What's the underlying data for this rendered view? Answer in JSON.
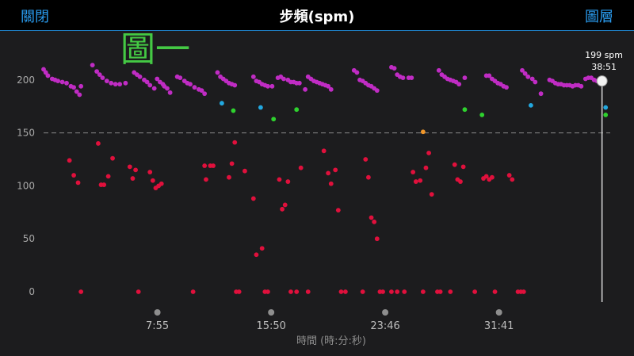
{
  "header": {
    "close_label": "關閉",
    "title": "步頻(spm)",
    "layers_label": "圖層"
  },
  "annotation": "圖一",
  "chart_data": {
    "type": "scatter",
    "title": "步頻(spm)",
    "xlabel": "時間 (時:分:秒)",
    "ylabel": "",
    "ylim": [
      0,
      210
    ],
    "yticks": [
      0,
      50,
      100,
      150,
      200
    ],
    "xtick_labels": [
      "7:55",
      "15:50",
      "23:46",
      "31:41"
    ],
    "xtick_values": [
      7.917,
      15.833,
      23.767,
      31.683
    ],
    "xlim": [
      0,
      39.2
    ],
    "reference_line": 150,
    "cursor": {
      "x": 38.85,
      "value_label": "199 spm",
      "time_label": "38:51",
      "y": 199
    },
    "colors": {
      "purple": "#c02cc4",
      "blue": "#22a8e0",
      "green": "#2ed12e",
      "orange": "#f0962a",
      "red": "#e0103c"
    },
    "series": [
      {
        "color": "purple",
        "points": [
          [
            0,
            210
          ],
          [
            0.15,
            207
          ],
          [
            0.3,
            204
          ],
          [
            0.6,
            201
          ],
          [
            0.8,
            200
          ],
          [
            1.0,
            199
          ],
          [
            1.3,
            198
          ],
          [
            1.6,
            197
          ],
          [
            1.9,
            194
          ],
          [
            2.1,
            193
          ],
          [
            2.3,
            189
          ],
          [
            2.5,
            186
          ],
          [
            2.6,
            194
          ],
          [
            3.4,
            214
          ],
          [
            3.7,
            208
          ],
          [
            3.9,
            205
          ],
          [
            4.1,
            202
          ],
          [
            4.4,
            199
          ],
          [
            4.7,
            197
          ],
          [
            5.0,
            196
          ],
          [
            5.3,
            196
          ],
          [
            5.7,
            197
          ],
          [
            6.3,
            207
          ],
          [
            6.5,
            205
          ],
          [
            6.7,
            203
          ],
          [
            7.0,
            200
          ],
          [
            7.2,
            198
          ],
          [
            7.4,
            195
          ],
          [
            7.7,
            192
          ],
          [
            7.9,
            201
          ],
          [
            8.1,
            198
          ],
          [
            8.3,
            196
          ],
          [
            8.4,
            194
          ],
          [
            8.6,
            192
          ],
          [
            8.8,
            188
          ],
          [
            9.3,
            203
          ],
          [
            9.5,
            202
          ],
          [
            9.8,
            199
          ],
          [
            10.0,
            197
          ],
          [
            10.2,
            196
          ],
          [
            10.5,
            193
          ],
          [
            10.8,
            191
          ],
          [
            11.0,
            190
          ],
          [
            11.2,
            187
          ],
          [
            12.1,
            207
          ],
          [
            12.3,
            203
          ],
          [
            12.5,
            201
          ],
          [
            12.7,
            199
          ],
          [
            12.9,
            197
          ],
          [
            13.1,
            196
          ],
          [
            13.3,
            195
          ],
          [
            14.6,
            203
          ],
          [
            14.8,
            199
          ],
          [
            15.0,
            198
          ],
          [
            15.2,
            196
          ],
          [
            15.4,
            195
          ],
          [
            15.6,
            194
          ],
          [
            15.9,
            194
          ],
          [
            16.3,
            202
          ],
          [
            16.5,
            203
          ],
          [
            16.7,
            201
          ],
          [
            17.0,
            200
          ],
          [
            17.2,
            198
          ],
          [
            17.4,
            198
          ],
          [
            17.6,
            197
          ],
          [
            17.8,
            197
          ],
          [
            18.2,
            191
          ],
          [
            18.4,
            203
          ],
          [
            18.6,
            201
          ],
          [
            18.8,
            199
          ],
          [
            19.0,
            198
          ],
          [
            19.2,
            197
          ],
          [
            19.4,
            196
          ],
          [
            19.6,
            195
          ],
          [
            19.8,
            194
          ],
          [
            20.0,
            191
          ],
          [
            21.6,
            209
          ],
          [
            21.8,
            207
          ],
          [
            22.0,
            200
          ],
          [
            22.2,
            199
          ],
          [
            22.4,
            197
          ],
          [
            22.6,
            195
          ],
          [
            22.8,
            194
          ],
          [
            23.0,
            192
          ],
          [
            23.2,
            190
          ],
          [
            24.2,
            212
          ],
          [
            24.4,
            211
          ],
          [
            24.6,
            205
          ],
          [
            24.8,
            203
          ],
          [
            25.0,
            202
          ],
          [
            25.4,
            202
          ],
          [
            25.6,
            202
          ],
          [
            27.5,
            209
          ],
          [
            27.7,
            205
          ],
          [
            27.9,
            203
          ],
          [
            28.1,
            201
          ],
          [
            28.3,
            200
          ],
          [
            28.5,
            199
          ],
          [
            28.7,
            198
          ],
          [
            28.9,
            196
          ],
          [
            29.3,
            202
          ],
          [
            30.8,
            204
          ],
          [
            31.0,
            204
          ],
          [
            31.2,
            201
          ],
          [
            31.4,
            199
          ],
          [
            31.6,
            197
          ],
          [
            31.8,
            196
          ],
          [
            32.0,
            194
          ],
          [
            32.2,
            193
          ],
          [
            33.3,
            209
          ],
          [
            33.5,
            206
          ],
          [
            33.7,
            203
          ],
          [
            34.0,
            201
          ],
          [
            34.2,
            198
          ],
          [
            34.6,
            187
          ],
          [
            35.2,
            200
          ],
          [
            35.4,
            199
          ],
          [
            35.6,
            197
          ],
          [
            35.8,
            196
          ],
          [
            36.0,
            196
          ],
          [
            36.2,
            195
          ],
          [
            36.4,
            195
          ],
          [
            36.6,
            195
          ],
          [
            36.8,
            194
          ],
          [
            37.0,
            195
          ],
          [
            37.2,
            195
          ],
          [
            37.4,
            194
          ],
          [
            37.7,
            201
          ],
          [
            37.9,
            202
          ],
          [
            38.1,
            202
          ],
          [
            38.3,
            200
          ],
          [
            38.5,
            199
          ],
          [
            38.8,
            197
          ]
        ]
      },
      {
        "color": "blue",
        "points": [
          [
            12.4,
            178
          ],
          [
            15.1,
            174
          ],
          [
            33.9,
            176
          ],
          [
            39.1,
            174
          ]
        ]
      },
      {
        "color": "green",
        "points": [
          [
            13.2,
            171
          ],
          [
            16.0,
            163
          ],
          [
            17.6,
            172
          ],
          [
            29.3,
            172
          ],
          [
            30.5,
            167
          ],
          [
            39.1,
            167
          ]
        ]
      },
      {
        "color": "orange",
        "points": [
          [
            26.4,
            151
          ]
        ]
      },
      {
        "color": "red",
        "points": [
          [
            1.8,
            124
          ],
          [
            2.1,
            110
          ],
          [
            2.4,
            103
          ],
          [
            2.6,
            0
          ],
          [
            3.8,
            140
          ],
          [
            4.0,
            101
          ],
          [
            4.2,
            101
          ],
          [
            4.5,
            109
          ],
          [
            4.8,
            126
          ],
          [
            6.0,
            118
          ],
          [
            6.2,
            107
          ],
          [
            6.4,
            115
          ],
          [
            6.6,
            0
          ],
          [
            7.4,
            113
          ],
          [
            7.6,
            105
          ],
          [
            7.8,
            98
          ],
          [
            8.0,
            100
          ],
          [
            8.2,
            102
          ],
          [
            10.4,
            0
          ],
          [
            11.2,
            119
          ],
          [
            11.3,
            106
          ],
          [
            11.6,
            119
          ],
          [
            11.8,
            119
          ],
          [
            12.9,
            108
          ],
          [
            13.1,
            121
          ],
          [
            13.3,
            141
          ],
          [
            13.4,
            0
          ],
          [
            13.6,
            0
          ],
          [
            14.0,
            114
          ],
          [
            14.6,
            88
          ],
          [
            14.8,
            35
          ],
          [
            15.2,
            41
          ],
          [
            15.4,
            0
          ],
          [
            15.6,
            0
          ],
          [
            16.4,
            106
          ],
          [
            16.6,
            78
          ],
          [
            16.8,
            82
          ],
          [
            17.0,
            104
          ],
          [
            17.2,
            0
          ],
          [
            17.6,
            0
          ],
          [
            17.9,
            117
          ],
          [
            18.4,
            0
          ],
          [
            19.5,
            133
          ],
          [
            19.8,
            112
          ],
          [
            20.0,
            102
          ],
          [
            20.3,
            115
          ],
          [
            20.5,
            77
          ],
          [
            20.7,
            0
          ],
          [
            21.0,
            0
          ],
          [
            22.2,
            0
          ],
          [
            22.4,
            125
          ],
          [
            22.6,
            108
          ],
          [
            22.8,
            70
          ],
          [
            23.0,
            66
          ],
          [
            23.2,
            50
          ],
          [
            23.4,
            0
          ],
          [
            23.6,
            0
          ],
          [
            24.2,
            0
          ],
          [
            24.6,
            0
          ],
          [
            25.1,
            0
          ],
          [
            25.7,
            113
          ],
          [
            25.9,
            104
          ],
          [
            26.2,
            105
          ],
          [
            26.4,
            0
          ],
          [
            26.6,
            117
          ],
          [
            26.8,
            131
          ],
          [
            27.0,
            92
          ],
          [
            27.4,
            0
          ],
          [
            27.6,
            0
          ],
          [
            28.3,
            0
          ],
          [
            28.6,
            120
          ],
          [
            28.8,
            106
          ],
          [
            29.0,
            104
          ],
          [
            29.2,
            118
          ],
          [
            30.0,
            0
          ],
          [
            30.6,
            107
          ],
          [
            30.8,
            109
          ],
          [
            31.0,
            106
          ],
          [
            31.2,
            108
          ],
          [
            31.4,
            0
          ],
          [
            32.4,
            110
          ],
          [
            32.6,
            106
          ],
          [
            33.0,
            0
          ],
          [
            33.2,
            0
          ],
          [
            33.4,
            0
          ]
        ]
      }
    ]
  }
}
